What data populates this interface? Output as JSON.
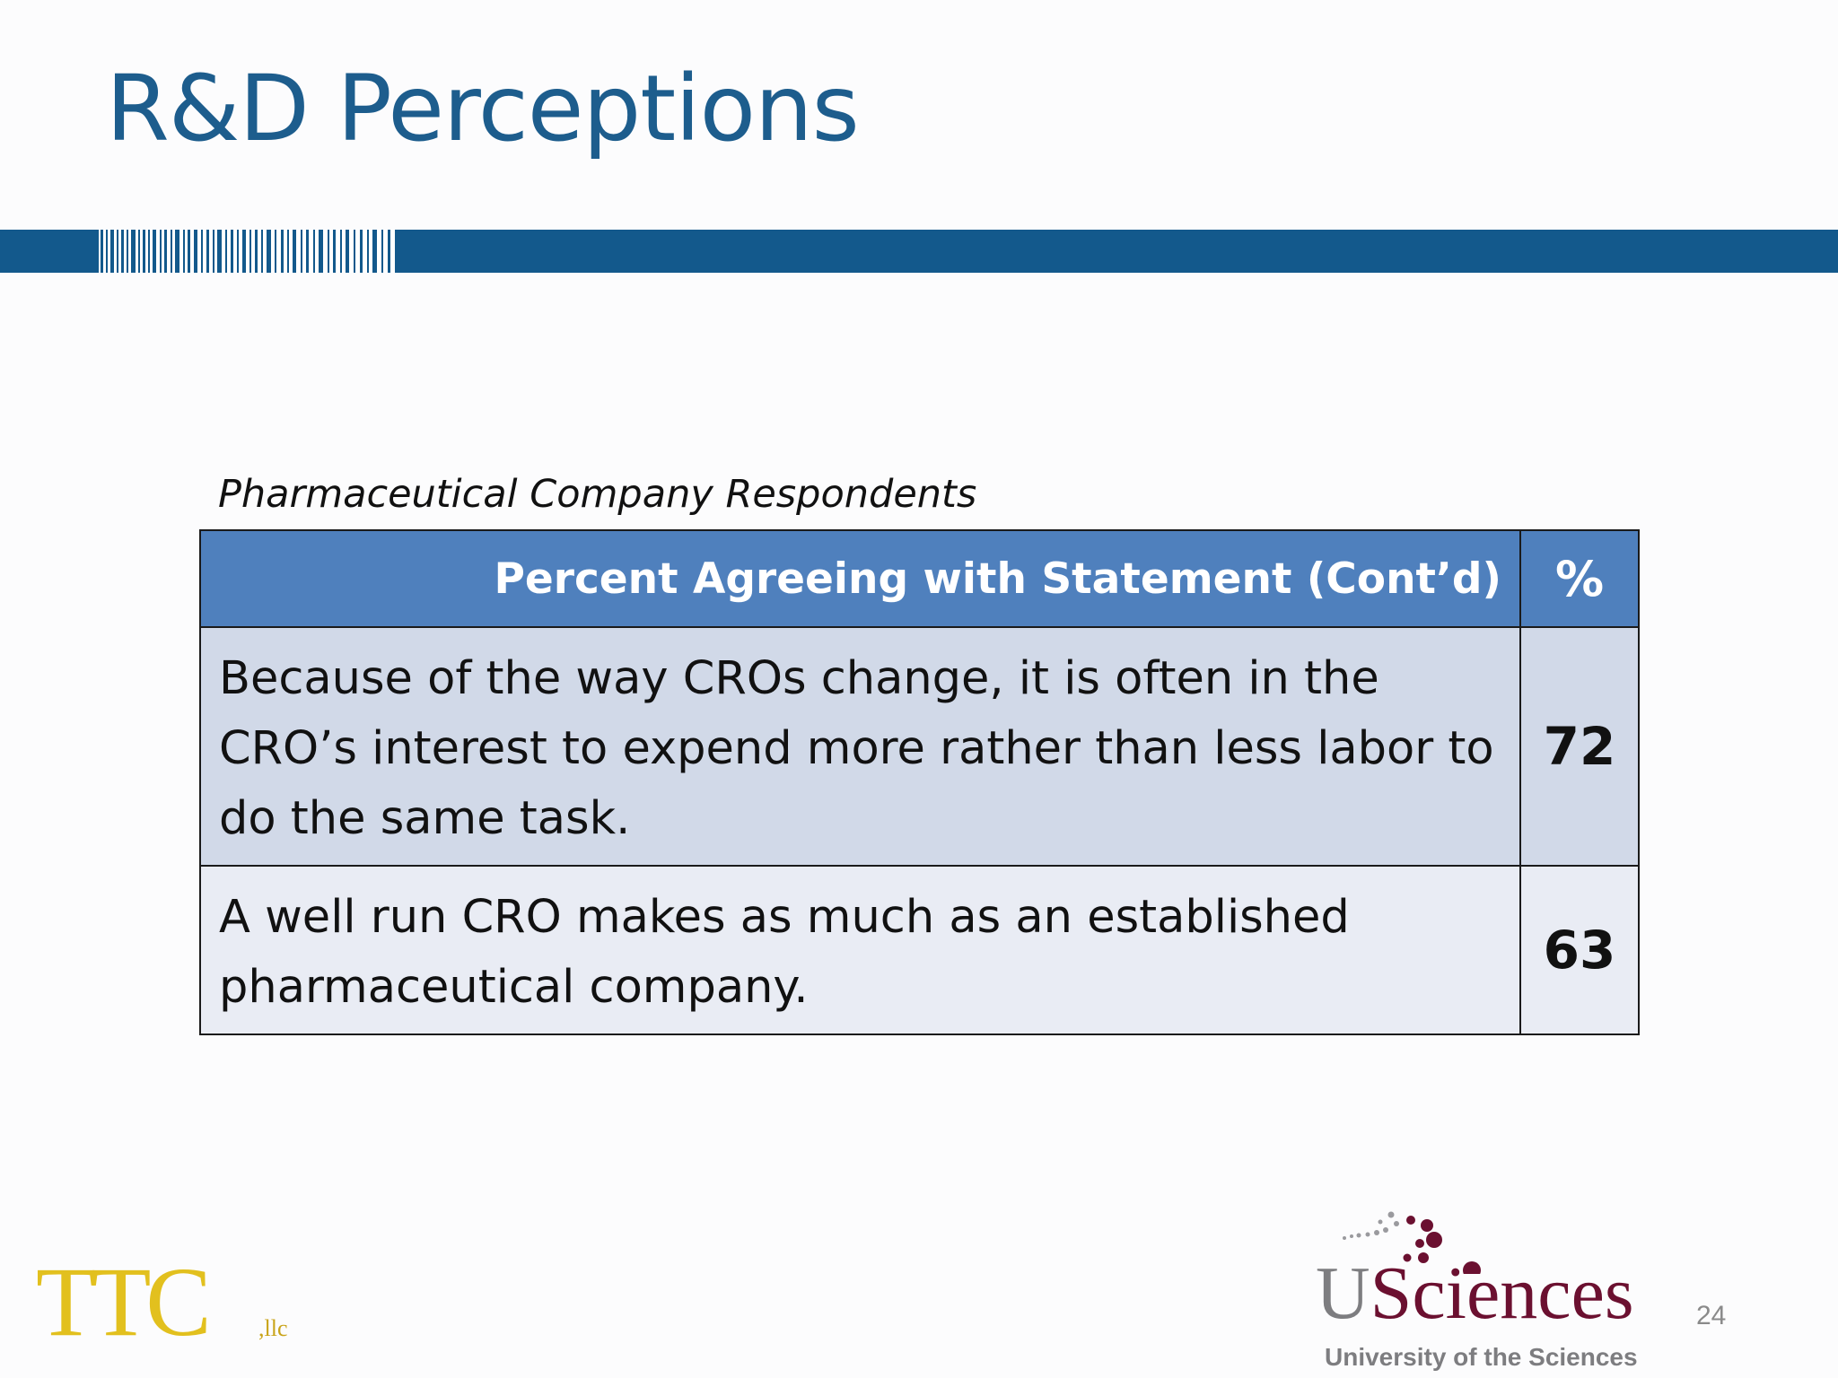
{
  "slide": {
    "title": "R&D Perceptions",
    "subtitle": "Pharmaceutical Company Respondents",
    "page_number": "24"
  },
  "table": {
    "header": {
      "statement": "Percent Agreeing with Statement (Cont’d)",
      "percent": "%"
    },
    "rows": [
      {
        "statement": "Because of the way CROs change, it is often in the CRO’s interest to expend more rather than less labor to do the same task.",
        "value": "72"
      },
      {
        "statement": "A well run CRO makes as much as an established pharmaceutical company.",
        "value": "63"
      }
    ]
  },
  "logos": {
    "ttc": {
      "text": "TTC",
      "suffix": ",llc"
    },
    "usciences": {
      "initial": "U",
      "rest": "Sciences",
      "tagline": "University of the Sciences"
    }
  },
  "colors": {
    "title": "#1d5d8d",
    "band": "#13598c",
    "table_header": "#4f80bd",
    "row_1": "#d1d9e8",
    "row_2": "#e9ecf4",
    "ttc_gold": "#e2c01e",
    "usciences_maroon": "#6b1030"
  }
}
